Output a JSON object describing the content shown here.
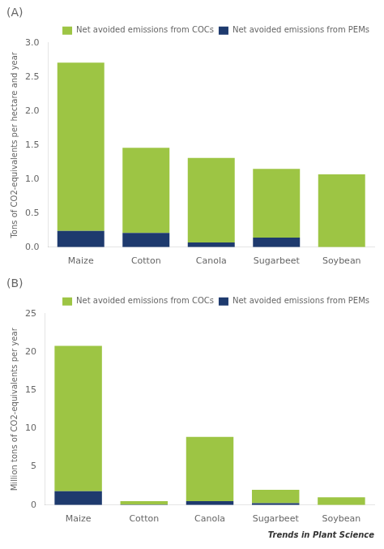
{
  "chart_data": [
    {
      "type": "bar",
      "title": "(A)",
      "stacked": true,
      "grid": false,
      "legend": "upper right",
      "categories": [
        "Maize",
        "Cotton",
        "Canola",
        "Sugarbeet",
        "Soybean"
      ],
      "ylabel": "Tons of CO2-equivalents per hectare and year",
      "ylim": [
        0,
        3
      ],
      "yticks": [
        {
          "value": 0,
          "label": "0.0"
        },
        0.5,
        {
          "value": 1.0,
          "label": "1.0"
        },
        1.5,
        {
          "value": 2.0,
          "label": "2.0"
        },
        2.5,
        {
          "value": 3.0,
          "label": "3.0"
        }
      ],
      "series": [
        {
          "name": "Net avoided emissions from PEMs",
          "color": "#1e3a6e",
          "values": [
            0.24,
            0.21,
            0.07,
            0.14,
            0.0
          ]
        },
        {
          "name": "Net avoided emissions from COCs",
          "color": "#9dc544",
          "values": [
            2.47,
            1.25,
            1.24,
            1.01,
            1.07
          ]
        }
      ]
    },
    {
      "type": "bar",
      "title": "(B)",
      "stacked": true,
      "grid": false,
      "legend": "upper right",
      "categories": [
        "Maize",
        "Cotton",
        "Canola",
        "Sugarbeet",
        "Soybean"
      ],
      "ylabel": "Million tons of CO2-equivalents per year",
      "ylim": [
        0,
        25
      ],
      "yticks": [
        0,
        5,
        10,
        15,
        20,
        25
      ],
      "annotations": [
        "Trends in Plant Science"
      ],
      "series": [
        {
          "name": "Net avoided emissions from PEMs",
          "color": "#1e3a6e",
          "values": [
            1.8,
            0.05,
            0.5,
            0.25,
            0.0
          ]
        },
        {
          "name": "Net avoided emissions from COCs",
          "color": "#9dc544",
          "values": [
            19.0,
            0.45,
            8.4,
            1.75,
            1.0
          ]
        }
      ]
    }
  ]
}
